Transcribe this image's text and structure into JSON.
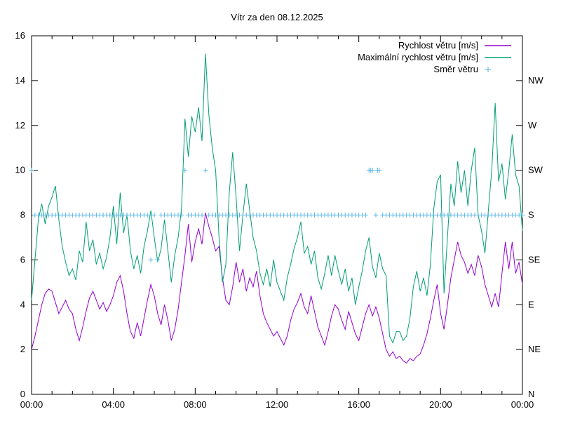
{
  "title": "Vítr za den 08.12.2025",
  "colors": {
    "speed": "#9400d3",
    "max_speed": "#009e73",
    "direction": "#56b4e9",
    "axis": "#000000",
    "background": "#ffffff"
  },
  "legend": [
    {
      "label": "Rychlost větru [m/s]",
      "series": "speed",
      "sample": "line"
    },
    {
      "label": "Maximální rychlost větru [m/s]",
      "series": "max_speed",
      "sample": "line"
    },
    {
      "label": "Směr větru",
      "series": "direction",
      "sample": "plus-marker"
    }
  ],
  "axes": {
    "x": {
      "major_labels": [
        "00:00",
        "04:00",
        "08:00",
        "12:00",
        "16:00",
        "20:00",
        "00:00"
      ],
      "major_hours": [
        0,
        4,
        8,
        12,
        16,
        20,
        24
      ],
      "minor_step_hours": 1,
      "range_hours": [
        0,
        24
      ]
    },
    "y_left": {
      "ticks": [
        0,
        2,
        4,
        6,
        8,
        10,
        12,
        14,
        16
      ],
      "range": [
        0,
        16
      ]
    },
    "y_right": {
      "labels": {
        "0": "N",
        "2": "NE",
        "4": "E",
        "6": "SE",
        "8": "S",
        "10": "SW",
        "12": "W",
        "14": "NW"
      }
    }
  },
  "chart_data": {
    "type": "line",
    "title": "Vítr za den 08.12.2025",
    "xlabel": "",
    "ylabel": "",
    "x_unit": "hours",
    "xlim_hours": [
      0,
      24
    ],
    "ylim": [
      0,
      16
    ],
    "grid": false,
    "legend_position": "top-right-inside",
    "sample_interval_minutes": 10,
    "start_hour": 0,
    "series": [
      {
        "name": "Rychlost větru [m/s]",
        "color": "#9400d3",
        "values": [
          2.0,
          2.6,
          3.3,
          4.0,
          4.5,
          4.7,
          4.6,
          4.1,
          3.6,
          3.9,
          4.2,
          3.8,
          3.6,
          2.9,
          2.4,
          3.0,
          3.7,
          4.3,
          4.6,
          4.2,
          3.8,
          4.1,
          3.7,
          4.0,
          4.4,
          5.0,
          5.3,
          4.6,
          3.6,
          2.8,
          2.5,
          3.2,
          2.6,
          3.4,
          4.2,
          4.9,
          4.4,
          3.6,
          3.1,
          4.0,
          3.3,
          2.4,
          2.9,
          3.8,
          5.0,
          6.2,
          7.6,
          5.9,
          6.8,
          7.4,
          6.7,
          8.1,
          7.5,
          7.0,
          6.4,
          6.6,
          5.2,
          4.2,
          4.0,
          4.8,
          5.9,
          5.0,
          5.6,
          4.6,
          5.2,
          4.8,
          5.5,
          4.4,
          3.6,
          3.2,
          2.9,
          2.6,
          2.8,
          2.5,
          2.2,
          2.6,
          3.3,
          3.8,
          4.1,
          4.5,
          3.9,
          3.6,
          4.4,
          3.7,
          3.0,
          2.6,
          2.2,
          2.8,
          3.5,
          4.0,
          3.8,
          3.3,
          2.9,
          3.7,
          3.2,
          2.7,
          2.4,
          3.0,
          3.6,
          4.0,
          3.5,
          3.9,
          3.4,
          2.7,
          2.0,
          1.7,
          1.9,
          1.6,
          1.7,
          1.5,
          1.4,
          1.6,
          1.5,
          1.7,
          1.8,
          2.2,
          2.7,
          3.4,
          4.2,
          4.9,
          3.6,
          2.9,
          4.0,
          5.2,
          6.0,
          6.8,
          6.2,
          5.9,
          5.4,
          5.8,
          5.3,
          6.2,
          5.7,
          4.9,
          4.4,
          3.9,
          4.5,
          3.9,
          5.4,
          6.8,
          5.6,
          6.8,
          5.4,
          5.9,
          4.9
        ]
      },
      {
        "name": "Maximální rychlost větru [m/s]",
        "color": "#009e73",
        "values": [
          4.2,
          6.0,
          7.8,
          8.5,
          7.6,
          8.4,
          8.8,
          9.3,
          7.8,
          6.6,
          5.9,
          5.3,
          5.6,
          5.1,
          6.4,
          5.9,
          7.7,
          6.4,
          6.9,
          5.8,
          6.3,
          5.6,
          6.1,
          7.0,
          8.4,
          6.7,
          9.0,
          7.2,
          8.0,
          6.4,
          5.6,
          6.2,
          5.4,
          6.6,
          7.3,
          8.2,
          7.0,
          5.9,
          6.5,
          7.8,
          6.4,
          5.0,
          6.2,
          7.0,
          8.3,
          12.3,
          10.6,
          12.4,
          11.7,
          12.8,
          11.3,
          15.2,
          12.5,
          11.0,
          10.0,
          7.0,
          5.0,
          5.8,
          9.0,
          10.8,
          8.8,
          6.4,
          8.0,
          9.4,
          8.2,
          7.0,
          6.4,
          5.4,
          4.9,
          5.6,
          4.8,
          6.0,
          5.0,
          4.6,
          4.2,
          5.2,
          5.8,
          6.5,
          7.0,
          7.7,
          6.3,
          6.6,
          5.8,
          6.4,
          5.2,
          4.7,
          5.4,
          6.2,
          5.3,
          6.2,
          5.5,
          4.9,
          5.6,
          4.6,
          5.2,
          4.0,
          4.8,
          5.5,
          6.4,
          7.0,
          5.7,
          5.2,
          6.3,
          5.6,
          5.3,
          2.6,
          2.3,
          2.8,
          2.8,
          2.4,
          2.6,
          3.4,
          4.8,
          5.5,
          4.6,
          5.2,
          4.4,
          5.8,
          8.3,
          9.5,
          9.8,
          4.5,
          7.0,
          9.4,
          8.4,
          10.4,
          9.0,
          10.0,
          8.4,
          10.0,
          11.0,
          8.0,
          7.3,
          6.3,
          8.2,
          10.0,
          13.0,
          9.5,
          10.3,
          8.7,
          10.0,
          11.6,
          9.8,
          9.3,
          7.3
        ]
      }
    ],
    "direction_series": {
      "name": "Směr větru",
      "color": "#56b4e9",
      "marker": "+",
      "default_value": 8,
      "default_compass": "S",
      "value_to_compass": {
        "0": "N",
        "2": "NE",
        "4": "E",
        "6": "SE",
        "8": "S",
        "10": "SW",
        "12": "W",
        "14": "NW",
        "16": "N"
      },
      "skip_times_hours": [
        0,
        5.833,
        6.167,
        7.5,
        8.5,
        16.5,
        16.667,
        17.0
      ],
      "extra_markers": [
        [
          0,
          10
        ],
        [
          5.833,
          6
        ],
        [
          6.167,
          6
        ],
        [
          7.5,
          10
        ],
        [
          8.5,
          10
        ],
        [
          16.5,
          10
        ],
        [
          16.583,
          10
        ],
        [
          16.667,
          10
        ],
        [
          16.917,
          10
        ],
        [
          17.0,
          10
        ]
      ]
    }
  }
}
